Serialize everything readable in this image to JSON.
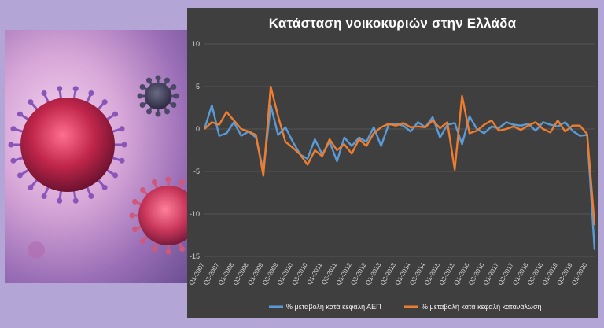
{
  "chart_data": {
    "type": "line",
    "title": "Κατάσταση νοικοκυριών στην Ελλάδα",
    "ylim": [
      -15,
      10
    ],
    "yticks": [
      10,
      5,
      0,
      -5,
      -10,
      -15
    ],
    "tick_labels": [
      "Q1-2007",
      "Q3-2007",
      "Q1-2008",
      "Q3-2008",
      "Q1-2009",
      "Q3-2009",
      "Q1-2010",
      "Q3-2010",
      "Q1-2011",
      "Q3-2011",
      "Q1-2012",
      "Q3-2012",
      "Q1-2013",
      "Q3-2013",
      "Q1-2014",
      "Q3-2014",
      "Q1-2015",
      "Q3-2015",
      "Q1-2016",
      "Q3-2016",
      "Q1-2017",
      "Q3-2017",
      "Q1-2018",
      "Q3-2018",
      "Q1-2019",
      "Q3-2019",
      "Q1-2020"
    ],
    "categories": [
      "Q1-2007",
      "Q2-2007",
      "Q3-2007",
      "Q4-2007",
      "Q1-2008",
      "Q2-2008",
      "Q3-2008",
      "Q4-2008",
      "Q1-2009",
      "Q2-2009",
      "Q3-2009",
      "Q4-2009",
      "Q1-2010",
      "Q2-2010",
      "Q3-2010",
      "Q4-2010",
      "Q1-2011",
      "Q2-2011",
      "Q3-2011",
      "Q4-2011",
      "Q1-2012",
      "Q2-2012",
      "Q3-2012",
      "Q4-2012",
      "Q1-2013",
      "Q2-2013",
      "Q3-2013",
      "Q4-2013",
      "Q1-2014",
      "Q2-2014",
      "Q3-2014",
      "Q4-2014",
      "Q1-2015",
      "Q2-2015",
      "Q3-2015",
      "Q4-2015",
      "Q1-2016",
      "Q2-2016",
      "Q3-2016",
      "Q4-2016",
      "Q1-2017",
      "Q2-2017",
      "Q3-2017",
      "Q4-2017",
      "Q1-2018",
      "Q2-2018",
      "Q3-2018",
      "Q4-2018",
      "Q1-2019",
      "Q2-2019",
      "Q3-2019",
      "Q4-2019",
      "Q1-2020",
      "Q2-2020"
    ],
    "series": [
      {
        "name": "% μεταβολή κατά κεφαλή ΑΕΠ",
        "color": "#5b9bd5",
        "values": [
          0.0,
          2.8,
          -0.8,
          -0.5,
          0.8,
          -0.8,
          -0.3,
          -1.0,
          -5.0,
          2.8,
          -0.7,
          0.2,
          -1.5,
          -3.0,
          -3.5,
          -1.2,
          -3.0,
          -1.5,
          -3.8,
          -1.0,
          -2.0,
          -1.0,
          -1.5,
          0.2,
          -2.0,
          0.5,
          0.6,
          0.4,
          -0.3,
          0.8,
          0.2,
          1.4,
          -1.0,
          0.5,
          0.7,
          -1.8,
          1.5,
          0.0,
          -0.5,
          0.3,
          0.1,
          0.8,
          0.5,
          0.4,
          0.6,
          -0.2,
          0.8,
          0.5,
          0.3,
          0.8,
          -0.2,
          -0.8,
          -0.7,
          -14.2
        ]
      },
      {
        "name": "% μεταβολή κατά κεφαλή κατανάλωση",
        "color": "#ed7d31",
        "values": [
          0.0,
          0.8,
          0.5,
          2.0,
          1.0,
          0.0,
          -0.3,
          -0.7,
          -5.5,
          5.0,
          1.5,
          -1.5,
          -2.2,
          -3.0,
          -4.2,
          -2.5,
          -3.2,
          -1.2,
          -2.5,
          -1.8,
          -2.9,
          -1.2,
          -2.0,
          -0.5,
          0.2,
          0.6,
          0.4,
          0.7,
          0.2,
          0.3,
          0.2,
          1.0,
          0.1,
          0.8,
          -4.8,
          3.9,
          -0.5,
          -0.2,
          0.5,
          1.0,
          -0.2,
          0.0,
          0.3,
          -0.1,
          0.4,
          0.8,
          0.0,
          -0.4,
          1.0,
          -0.3,
          0.4,
          0.4,
          -0.6,
          -11.3
        ]
      }
    ]
  }
}
